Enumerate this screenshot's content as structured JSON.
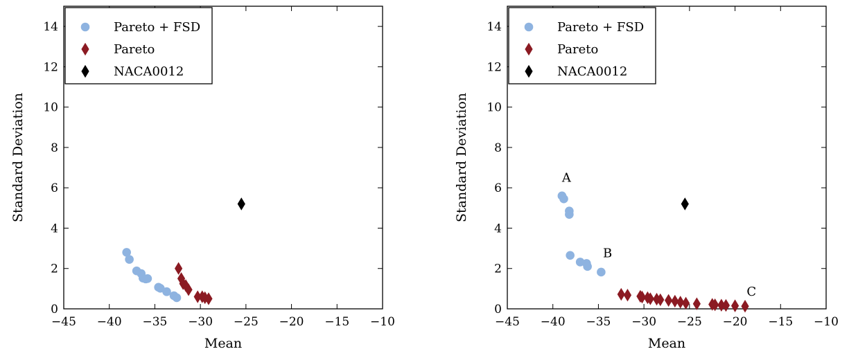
{
  "colors": {
    "pareto_fsd": "#8eb3e0",
    "pareto": "#8b1a22",
    "naca": "#000000"
  },
  "chart_data": [
    {
      "type": "scatter",
      "xlabel": "Mean",
      "ylabel": "Standard Deviation",
      "xlim": [
        -45,
        -10
      ],
      "ylim": [
        0,
        15
      ],
      "xticks": [
        -45,
        -40,
        -35,
        -30,
        -25,
        -20,
        -15,
        -10
      ],
      "yticks": [
        0,
        2,
        4,
        6,
        8,
        10,
        12,
        14
      ],
      "xtick_labels": [
        "−45",
        "−40",
        "−35",
        "−30",
        "−25",
        "−20",
        "−15",
        "−10"
      ],
      "ytick_labels": [
        "0",
        "2",
        "4",
        "6",
        "8",
        "10",
        "12",
        "14"
      ],
      "grid": false,
      "legend_position": "top-left",
      "series": [
        {
          "name": "Pareto + FSD",
          "marker": "circle",
          "color": "#8eb3e0",
          "points": [
            [
              -38.1,
              2.8
            ],
            [
              -37.8,
              2.45
            ],
            [
              -37.0,
              1.88
            ],
            [
              -36.5,
              1.75
            ],
            [
              -36.3,
              1.52
            ],
            [
              -36.0,
              1.48
            ],
            [
              -35.8,
              1.5
            ],
            [
              -34.6,
              1.07
            ],
            [
              -34.4,
              1.02
            ],
            [
              -33.7,
              0.85
            ],
            [
              -32.9,
              0.65
            ],
            [
              -32.6,
              0.55
            ]
          ]
        },
        {
          "name": "Pareto",
          "marker": "diamond",
          "color": "#8b1a22",
          "points": [
            [
              -32.4,
              2.0
            ],
            [
              -32.1,
              1.5
            ],
            [
              -31.9,
              1.25
            ],
            [
              -31.6,
              1.15
            ],
            [
              -31.3,
              0.95
            ],
            [
              -30.3,
              0.6
            ],
            [
              -29.8,
              0.6
            ],
            [
              -29.5,
              0.55
            ],
            [
              -29.1,
              0.5
            ]
          ]
        },
        {
          "name": "NACA0012",
          "marker": "diamond",
          "color": "#000000",
          "points": [
            [
              -25.5,
              5.2
            ]
          ]
        }
      ],
      "annotations": []
    },
    {
      "type": "scatter",
      "xlabel": "Mean",
      "ylabel": "Standard Deviation",
      "xlim": [
        -45,
        -10
      ],
      "ylim": [
        0,
        15
      ],
      "xticks": [
        -45,
        -40,
        -35,
        -30,
        -25,
        -20,
        -15,
        -10
      ],
      "yticks": [
        0,
        2,
        4,
        6,
        8,
        10,
        12,
        14
      ],
      "xtick_labels": [
        "−45",
        "−40",
        "−35",
        "−30",
        "−25",
        "−20",
        "−15",
        "−10"
      ],
      "ytick_labels": [
        "0",
        "2",
        "4",
        "6",
        "8",
        "10",
        "12",
        "14"
      ],
      "grid": false,
      "legend_position": "top-left",
      "series": [
        {
          "name": "Pareto + FSD",
          "marker": "circle",
          "color": "#8eb3e0",
          "points": [
            [
              -39.0,
              5.6
            ],
            [
              -38.8,
              5.45
            ],
            [
              -38.2,
              4.85
            ],
            [
              -38.2,
              4.68
            ],
            [
              -38.1,
              2.65
            ],
            [
              -37.0,
              2.32
            ],
            [
              -36.3,
              2.25
            ],
            [
              -36.2,
              2.1
            ],
            [
              -34.7,
              1.82
            ]
          ]
        },
        {
          "name": "Pareto",
          "marker": "diamond",
          "color": "#8b1a22",
          "points": [
            [
              -32.5,
              0.72
            ],
            [
              -31.8,
              0.68
            ],
            [
              -30.4,
              0.62
            ],
            [
              -30.2,
              0.58
            ],
            [
              -29.6,
              0.55
            ],
            [
              -29.3,
              0.5
            ],
            [
              -28.6,
              0.48
            ],
            [
              -28.2,
              0.45
            ],
            [
              -27.3,
              0.42
            ],
            [
              -26.6,
              0.38
            ],
            [
              -26.0,
              0.33
            ],
            [
              -25.4,
              0.28
            ],
            [
              -24.2,
              0.25
            ],
            [
              -22.5,
              0.22
            ],
            [
              -22.2,
              0.2
            ],
            [
              -21.5,
              0.18
            ],
            [
              -21.0,
              0.17
            ],
            [
              -20.0,
              0.15
            ],
            [
              -18.9,
              0.13
            ]
          ]
        },
        {
          "name": "NACA0012",
          "marker": "diamond",
          "color": "#000000",
          "points": [
            [
              -25.5,
              5.2
            ]
          ]
        }
      ],
      "annotations": [
        {
          "text": "A",
          "x": -38.5,
          "y": 6.3
        },
        {
          "text": "B",
          "x": -34.0,
          "y": 2.55
        },
        {
          "text": "C",
          "x": -18.2,
          "y": 0.65
        }
      ]
    }
  ]
}
